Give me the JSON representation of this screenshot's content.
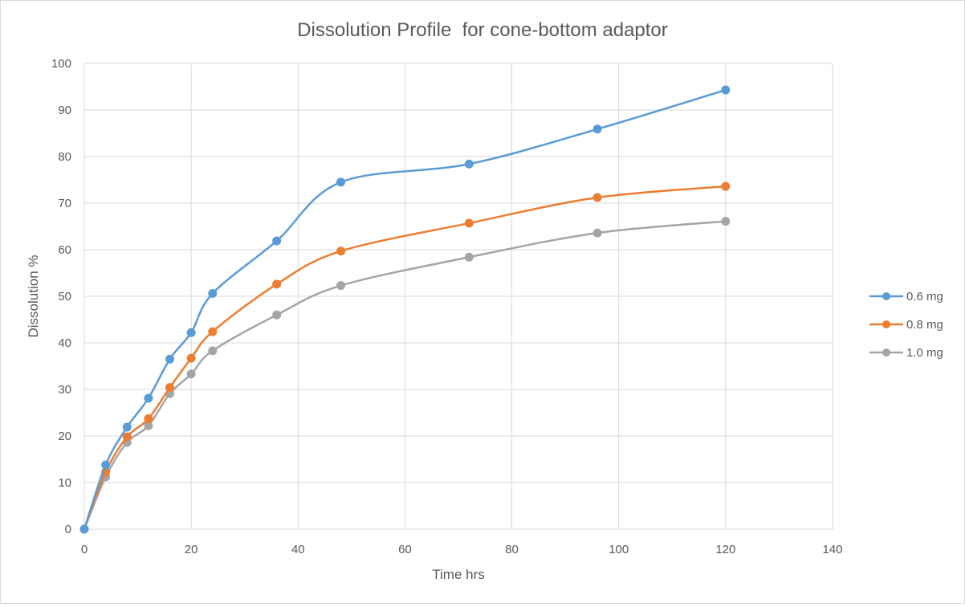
{
  "chart_data": {
    "type": "line",
    "title": "Dissolution Profile  for cone-bottom adaptor",
    "xlabel": "Time hrs",
    "ylabel": "Dissolution %",
    "xlim": [
      0,
      140
    ],
    "ylim": [
      0,
      100
    ],
    "xticks": [
      0,
      20,
      40,
      60,
      80,
      100,
      120,
      140
    ],
    "yticks": [
      0,
      10,
      20,
      30,
      40,
      50,
      60,
      70,
      80,
      90,
      100
    ],
    "grid": true,
    "smooth": true,
    "legend_position": "right",
    "x": [
      0,
      4,
      8,
      12,
      16,
      20,
      24,
      36,
      48,
      72,
      96,
      120
    ],
    "series": [
      {
        "name": "0.6 mg",
        "color": "#5b9bd5",
        "values": [
          0,
          13.8,
          21.9,
          28.1,
          36.5,
          42.2,
          50.6,
          61.9,
          74.5,
          78.4,
          85.9,
          94.3
        ]
      },
      {
        "name": "0.8 mg",
        "color": "#ed7d31",
        "values": [
          0,
          12.3,
          19.8,
          23.7,
          30.4,
          36.7,
          42.4,
          52.6,
          59.7,
          65.7,
          71.2,
          73.6
        ]
      },
      {
        "name": "1.0 mg",
        "color": "#a5a5a5",
        "values": [
          0,
          11.2,
          18.6,
          22.2,
          29.1,
          33.3,
          38.3,
          46.0,
          52.3,
          58.4,
          63.6,
          66.1
        ]
      }
    ]
  }
}
